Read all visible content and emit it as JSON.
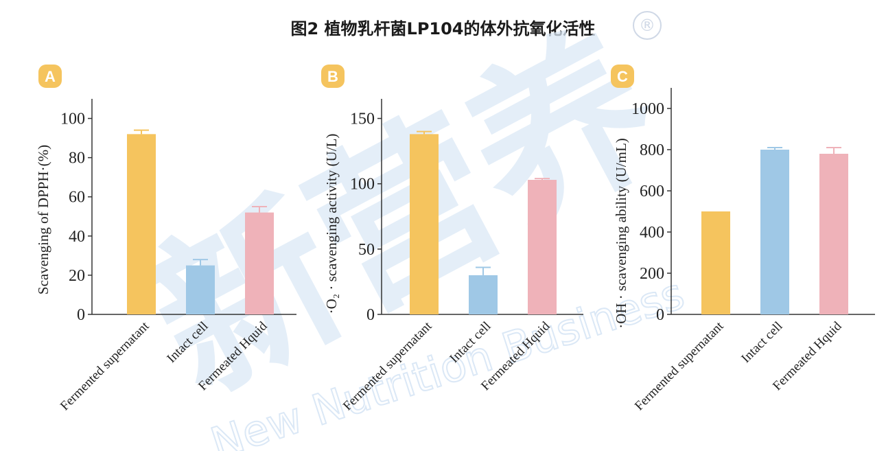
{
  "figure_title": "图2 植物乳杆菌LP104的体外抗氧化活性",
  "watermark": {
    "registered_mark": "®",
    "brand_cn": "新营养",
    "brand_en": "New Nutrition Business"
  },
  "colors": {
    "yellow": "#f5c45e",
    "blue": "#9fc8e6",
    "pink": "#efb2b9",
    "badge": "#f5c45e",
    "axis": "#333333",
    "watermark": "#dbe8f6"
  },
  "chart_data": [
    {
      "panel": "A",
      "type": "bar",
      "categories": [
        "Fermented supernatant",
        "Intact cell",
        "Fermeated Hquid"
      ],
      "series": [
        {
          "values": [
            92,
            25,
            52
          ],
          "errors": [
            2,
            3,
            3
          ]
        }
      ],
      "bar_colors": [
        "yellow",
        "blue",
        "pink"
      ],
      "ylabel": "Scavenging of DPPH·(%)",
      "ylim": [
        0,
        110
      ],
      "yticks": [
        0,
        20,
        40,
        60,
        80,
        100
      ],
      "ytick_labels": [
        "0",
        "20",
        "40",
        "60",
        "80",
        "100"
      ],
      "grid": false
    },
    {
      "panel": "B",
      "type": "bar",
      "categories": [
        "Fermented supernatant",
        "Intact cell",
        "Fermeated Hquid"
      ],
      "series": [
        {
          "values": [
            138,
            30,
            103
          ],
          "errors": [
            2,
            6,
            1
          ]
        }
      ],
      "bar_colors": [
        "yellow",
        "blue",
        "pink"
      ],
      "ylabel": "·O₂ · scavenging activity (U/L)",
      "ylim": [
        0,
        165
      ],
      "yticks": [
        0,
        50,
        100,
        150
      ],
      "ytick_labels": [
        "0",
        "50",
        "100",
        "150"
      ],
      "grid": false
    },
    {
      "panel": "C",
      "type": "bar",
      "categories": [
        "Fermented supernatant",
        "Intact cell",
        "Fermeated Hquid"
      ],
      "series": [
        {
          "values": [
            500,
            800,
            780
          ],
          "errors": [
            0,
            10,
            30
          ]
        }
      ],
      "bar_colors": [
        "yellow",
        "blue",
        "pink"
      ],
      "ylabel": "·OH · scavenging ability (U/mL)",
      "ylim": [
        0,
        1100
      ],
      "yticks": [
        0,
        200,
        400,
        600,
        800,
        1000
      ],
      "ytick_labels": [
        "0",
        "200",
        "400",
        "600",
        "800",
        "1000"
      ],
      "grid": false
    }
  ]
}
